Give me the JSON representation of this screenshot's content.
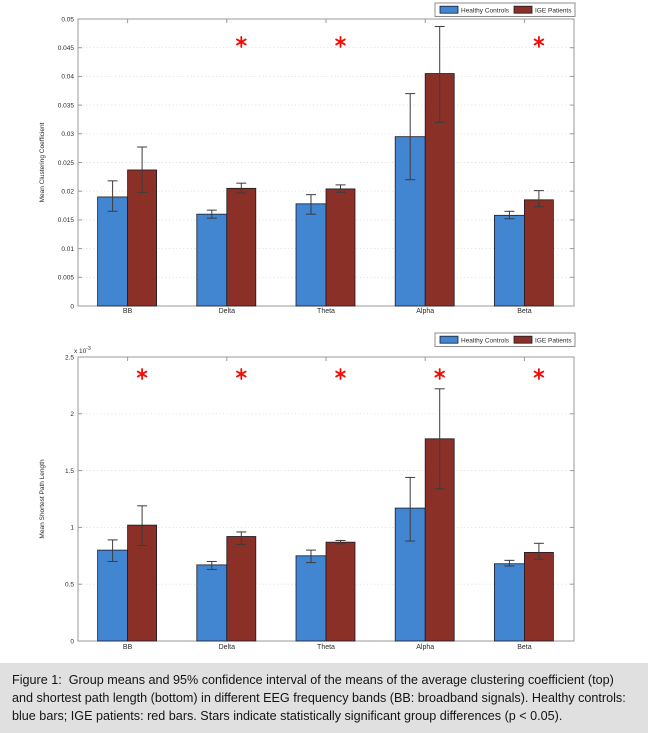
{
  "figure": {
    "caption": "Figure 1:  Group means and 95% confidence interval of the means of the average clustering coefficient (top) and shortest path length (bottom) in different EEG frequency bands (BB: broadband signals). Healthy controls: blue bars; IGE patients: red bars. Stars indicate statistically significant group differences (p < 0.05).",
    "caption_bg": "#e0e0e0"
  },
  "colors": {
    "healthy": "#4285d1",
    "ige": "#8b3027",
    "bar_edge": "#1b1b26",
    "error_bar": "#3c3c3c",
    "grid": "#d9d9d9",
    "axis": "#9a9a9a",
    "star": "#f30b06",
    "text": "#2b2b2b",
    "legend_border": "#8c8c8c",
    "legend_bg": "#ffffff"
  },
  "legend": {
    "items": [
      {
        "label": "Healthy Controls",
        "color_key": "healthy"
      },
      {
        "label": "IGE Patients",
        "color_key": "ige"
      }
    ],
    "position": "top-right"
  },
  "chart_data": [
    {
      "type": "bar",
      "title": "",
      "xlabel": "",
      "ylabel": "Mean Clustering Coefficient",
      "ylim": [
        0,
        0.05
      ],
      "yticks": [
        0,
        0.005,
        0.01,
        0.015,
        0.02,
        0.025,
        0.03,
        0.035,
        0.04,
        0.045,
        0.05
      ],
      "ytick_labels": [
        "0",
        "0.005",
        "0.01",
        "0.015",
        "0.02",
        "0.025",
        "0.03",
        "0.035",
        "0.04",
        "0.045",
        "0.05"
      ],
      "exponent": null,
      "grid": "dotted-horizontal",
      "legend_position": "top-right",
      "categories": [
        "BB",
        "Delta",
        "Theta",
        "Alpha",
        "Beta"
      ],
      "series": [
        {
          "name": "Healthy Controls",
          "values": [
            0.019,
            0.016,
            0.0178,
            0.0295,
            0.0158
          ],
          "ci_low": [
            0.0165,
            0.0153,
            0.016,
            0.022,
            0.0152
          ],
          "ci_high": [
            0.0218,
            0.0167,
            0.0194,
            0.037,
            0.0165
          ]
        },
        {
          "name": "IGE Patients",
          "values": [
            0.0237,
            0.0205,
            0.0204,
            0.0405,
            0.0185
          ],
          "ci_low": [
            0.0198,
            0.0197,
            0.0198,
            0.032,
            0.0173
          ],
          "ci_high": [
            0.0277,
            0.0214,
            0.0211,
            0.0487,
            0.0201
          ]
        }
      ],
      "significant_categories": [
        "Delta",
        "Theta",
        "Beta"
      ],
      "star_y": 0.046
    },
    {
      "type": "bar",
      "title": "",
      "xlabel": "",
      "ylabel": "Mean Shortest Path Length",
      "units_note": "values are in units of 10^-3",
      "ylim": [
        0,
        2.5
      ],
      "yticks": [
        0,
        0.5,
        1,
        1.5,
        2,
        2.5
      ],
      "ytick_labels": [
        "0",
        "0.5",
        "1",
        "1.5",
        "2",
        "2.5"
      ],
      "exponent": {
        "base": "x 10",
        "power": "-3"
      },
      "grid": "dotted-horizontal",
      "legend_position": "top-right",
      "categories": [
        "BB",
        "Delta",
        "Theta",
        "Alpha",
        "Beta"
      ],
      "series": [
        {
          "name": "Healthy Controls",
          "values": [
            0.8,
            0.67,
            0.75,
            1.17,
            0.68
          ],
          "ci_low": [
            0.7,
            0.63,
            0.69,
            0.88,
            0.66
          ],
          "ci_high": [
            0.89,
            0.7,
            0.8,
            1.44,
            0.71
          ]
        },
        {
          "name": "IGE Patients",
          "values": [
            1.02,
            0.92,
            0.87,
            1.78,
            0.78
          ],
          "ci_low": [
            0.84,
            0.85,
            0.855,
            1.34,
            0.72
          ],
          "ci_high": [
            1.19,
            0.96,
            0.885,
            2.22,
            0.86
          ]
        }
      ],
      "significant_categories": [
        "BB",
        "Delta",
        "Theta",
        "Alpha",
        "Beta"
      ],
      "star_y": 2.35
    }
  ]
}
